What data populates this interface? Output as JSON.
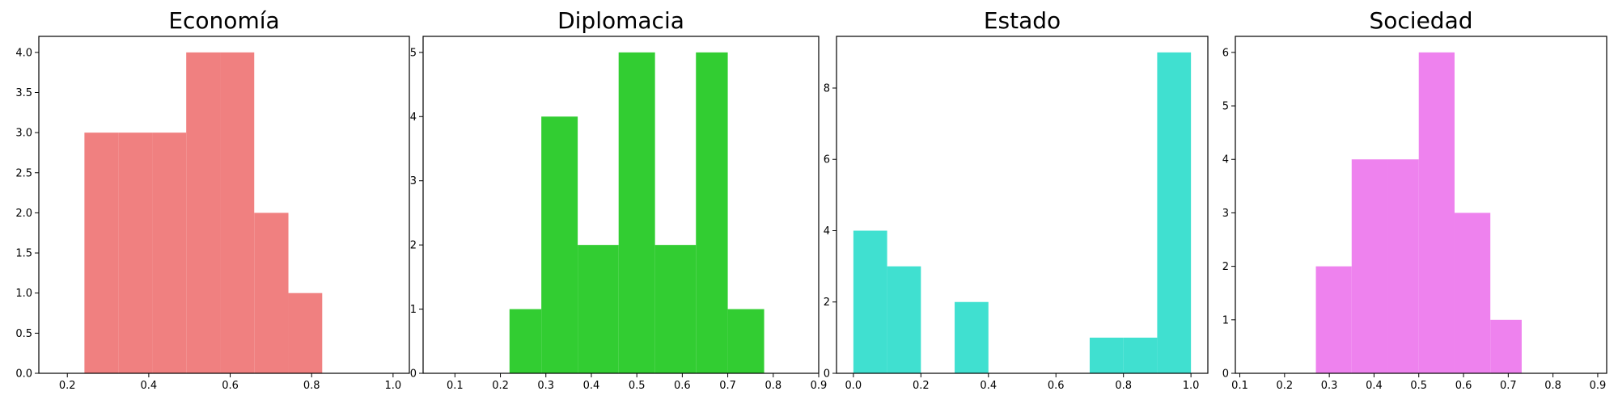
{
  "chart_data": [
    {
      "type": "bar",
      "title": "Economía",
      "color": "#f08080",
      "xlim": [
        0.13,
        1.04
      ],
      "ylim": [
        0,
        4.2
      ],
      "xticks": [
        0.2,
        0.4,
        0.6,
        0.8,
        1.0
      ],
      "xtick_labels": [
        "0.2",
        "0.4",
        "0.6",
        "0.8",
        "1.0"
      ],
      "yticks": [
        0,
        0.5,
        1.0,
        1.5,
        2.0,
        2.5,
        3.0,
        3.5,
        4.0
      ],
      "ytick_labels": [
        "0.0",
        "0.5",
        "1.0",
        "1.5",
        "2.0",
        "2.5",
        "3.0",
        "3.5",
        "4.0"
      ],
      "bins": [
        {
          "x0": 0.242,
          "x1": 0.325,
          "count": 3
        },
        {
          "x0": 0.325,
          "x1": 0.409,
          "count": 3
        },
        {
          "x0": 0.409,
          "x1": 0.492,
          "count": 3
        },
        {
          "x0": 0.492,
          "x1": 0.576,
          "count": 4
        },
        {
          "x0": 0.576,
          "x1": 0.659,
          "count": 4
        },
        {
          "x0": 0.659,
          "x1": 0.743,
          "count": 2
        },
        {
          "x0": 0.743,
          "x1": 0.826,
          "count": 1
        }
      ]
    },
    {
      "type": "bar",
      "title": "Diplomacia",
      "color": "#32cd32",
      "xlim": [
        0.03,
        0.9
      ],
      "ylim": [
        0,
        5.25
      ],
      "xticks": [
        0.1,
        0.2,
        0.3,
        0.4,
        0.5,
        0.6,
        0.7,
        0.8,
        0.9
      ],
      "xtick_labels": [
        "0.1",
        "0.2",
        "0.3",
        "0.4",
        "0.5",
        "0.6",
        "0.7",
        "0.8",
        "0.9"
      ],
      "yticks": [
        0,
        1,
        2,
        3,
        4,
        5
      ],
      "ytick_labels": [
        "0",
        "1",
        "2",
        "3",
        "4",
        "5"
      ],
      "bins": [
        {
          "x0": 0.22,
          "x1": 0.29,
          "count": 1
        },
        {
          "x0": 0.29,
          "x1": 0.37,
          "count": 4
        },
        {
          "x0": 0.37,
          "x1": 0.46,
          "count": 2
        },
        {
          "x0": 0.46,
          "x1": 0.54,
          "count": 5
        },
        {
          "x0": 0.54,
          "x1": 0.63,
          "count": 2
        },
        {
          "x0": 0.63,
          "x1": 0.7,
          "count": 5
        },
        {
          "x0": 0.7,
          "x1": 0.78,
          "count": 1
        }
      ]
    },
    {
      "type": "bar",
      "title": "Estado",
      "color": "#40e0d0",
      "xlim": [
        -0.05,
        1.05
      ],
      "ylim": [
        0,
        9.45
      ],
      "xticks": [
        0,
        0.2,
        0.4,
        0.6,
        0.8,
        1.0
      ],
      "xtick_labels": [
        "0.0",
        "0.2",
        "0.4",
        "0.6",
        "0.8",
        "1.0"
      ],
      "yticks": [
        0,
        2,
        4,
        6,
        8
      ],
      "ytick_labels": [
        "0",
        "2",
        "4",
        "6",
        "8"
      ],
      "bins": [
        {
          "x0": 0.0,
          "x1": 0.1,
          "count": 4
        },
        {
          "x0": 0.1,
          "x1": 0.2,
          "count": 3
        },
        {
          "x0": 0.2,
          "x1": 0.3,
          "count": 0
        },
        {
          "x0": 0.3,
          "x1": 0.4,
          "count": 2
        },
        {
          "x0": 0.4,
          "x1": 0.5,
          "count": 0
        },
        {
          "x0": 0.5,
          "x1": 0.6,
          "count": 0
        },
        {
          "x0": 0.6,
          "x1": 0.7,
          "count": 0
        },
        {
          "x0": 0.7,
          "x1": 0.8,
          "count": 1
        },
        {
          "x0": 0.8,
          "x1": 0.9,
          "count": 1
        },
        {
          "x0": 0.9,
          "x1": 1.0,
          "count": 9
        }
      ]
    },
    {
      "type": "bar",
      "title": "Sociedad",
      "color": "#ee82ee",
      "xlim": [
        0.09,
        0.92
      ],
      "ylim": [
        0,
        6.3
      ],
      "xticks": [
        0.1,
        0.2,
        0.3,
        0.4,
        0.5,
        0.6,
        0.7,
        0.8,
        0.9
      ],
      "xtick_labels": [
        "0.1",
        "0.2",
        "0.3",
        "0.4",
        "0.5",
        "0.6",
        "0.7",
        "0.8",
        "0.9"
      ],
      "yticks": [
        0,
        1,
        2,
        3,
        4,
        5,
        6
      ],
      "ytick_labels": [
        "0",
        "1",
        "2",
        "3",
        "4",
        "5",
        "6"
      ],
      "bins": [
        {
          "x0": 0.27,
          "x1": 0.35,
          "count": 2
        },
        {
          "x0": 0.35,
          "x1": 0.43,
          "count": 4
        },
        {
          "x0": 0.43,
          "x1": 0.5,
          "count": 4
        },
        {
          "x0": 0.5,
          "x1": 0.58,
          "count": 6
        },
        {
          "x0": 0.58,
          "x1": 0.66,
          "count": 3
        },
        {
          "x0": 0.66,
          "x1": 0.73,
          "count": 1
        }
      ]
    }
  ]
}
